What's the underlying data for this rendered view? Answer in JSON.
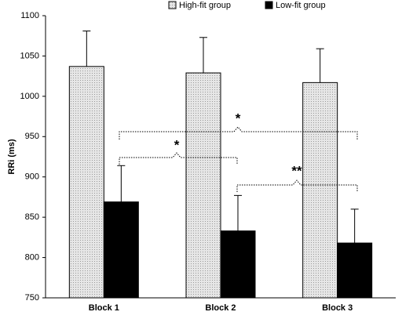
{
  "chart_data": {
    "type": "bar",
    "categories": [
      "Block 1",
      "Block 2",
      "Block 3"
    ],
    "y_label": "RRi (ms)",
    "series": [
      {
        "name": "High-fit group",
        "color": "#d4d4d4",
        "values": [
          1037,
          1029,
          1017
        ],
        "errors": [
          44,
          44,
          42
        ]
      },
      {
        "name": "Low-fit group",
        "color": "#000000",
        "values": [
          869,
          833,
          818
        ],
        "errors": [
          45,
          44,
          42
        ]
      }
    ],
    "ylim": [
      750,
      1100
    ],
    "yticks": [
      750,
      800,
      850,
      900,
      950,
      1000,
      1050,
      1100
    ],
    "annotations": [
      "*",
      "*",
      "**"
    ]
  }
}
